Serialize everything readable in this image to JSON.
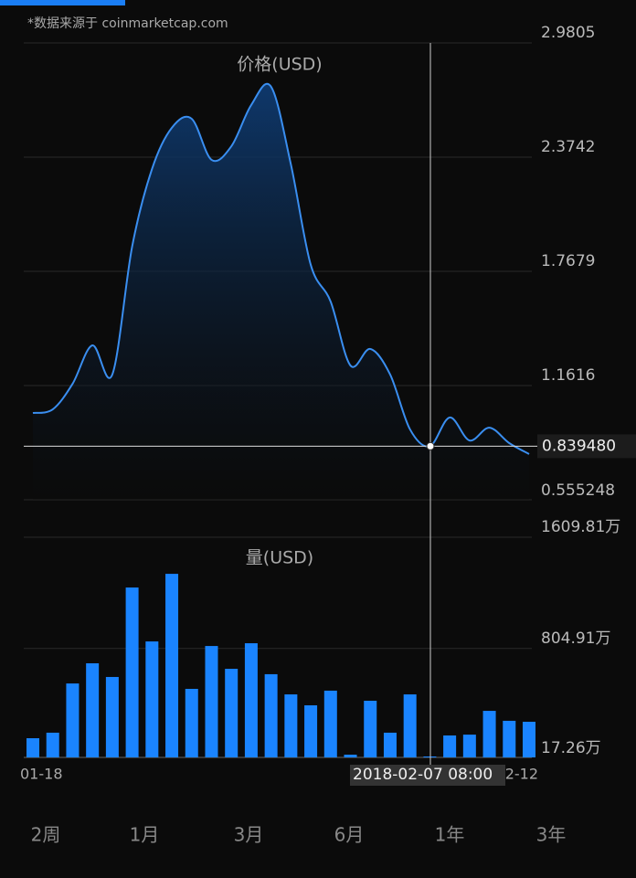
{
  "source": "*数据来源于 coinmarketcap.com",
  "tabs": [
    "2周",
    "1月",
    "3月",
    "6月",
    "1年",
    "3年"
  ],
  "crosshair": {
    "x": "2018-02-07 08:00",
    "value": 0.83948,
    "label": "0.839480"
  },
  "chart_data": [
    {
      "type": "area",
      "title": "价格(USD)",
      "color": "#3a8ef0",
      "values": [
        1.016,
        1.035,
        1.171,
        1.375,
        1.22,
        1.899,
        2.311,
        2.53,
        2.578,
        2.36,
        2.432,
        2.651,
        2.748,
        2.335,
        1.802,
        1.608,
        1.268,
        1.356,
        1.22,
        0.929,
        0.83948,
        0.992,
        0.87,
        0.938,
        0.856,
        0.798
      ],
      "ylim": [
        0.555248,
        2.9805
      ],
      "yticks": [
        0.555248,
        1.1616,
        1.7679,
        2.3742,
        2.9805
      ],
      "grid": true
    },
    {
      "type": "bar",
      "title": "量(USD)",
      "color": "#1a84ff",
      "categories": [
        "01-18",
        null,
        null,
        null,
        null,
        null,
        null,
        null,
        null,
        null,
        null,
        null,
        null,
        null,
        null,
        null,
        null,
        null,
        null,
        null,
        null,
        null,
        null,
        null,
        null,
        "2-12"
      ],
      "values": [
        156,
        196,
        552,
        698,
        599,
        1246,
        856,
        1345,
        513,
        823,
        658,
        843,
        619,
        473,
        394,
        500,
        37,
        427,
        196,
        473,
        24,
        176,
        182,
        354,
        282,
        275
      ],
      "ylim": [
        17.26,
        1609.81
      ],
      "yticks": [
        {
          "value": 17.26,
          "label": "17.26万"
        },
        {
          "value": 804.91,
          "label": "804.91万"
        },
        {
          "value": 1609.81,
          "label": "1609.81万"
        }
      ],
      "grid": true
    }
  ]
}
